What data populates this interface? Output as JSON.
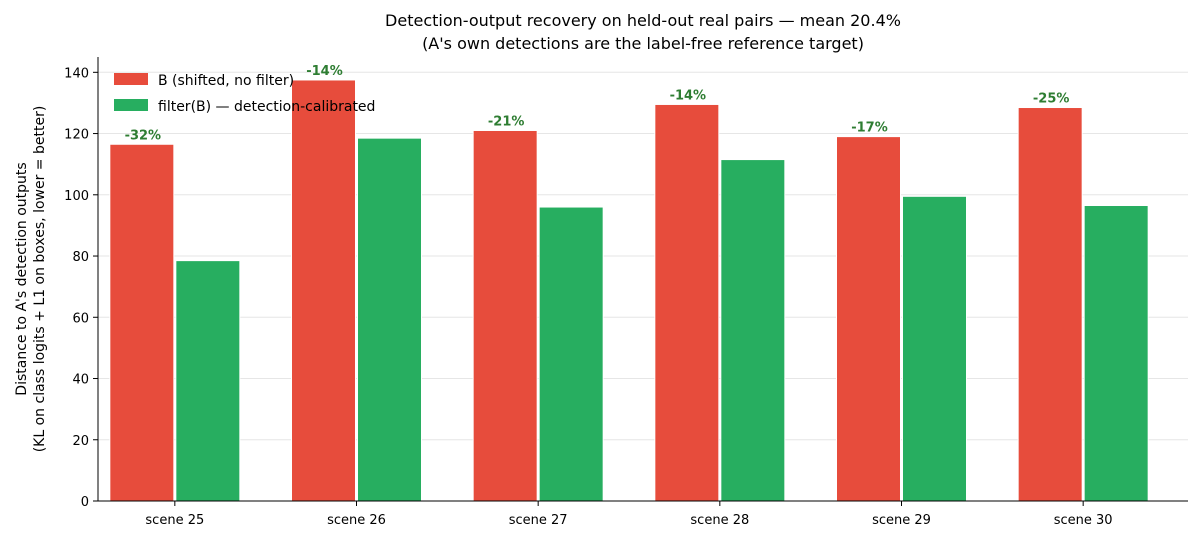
{
  "chart_data": {
    "type": "bar",
    "title": "Detection-output recovery on held-out real pairs — mean 20.4%",
    "subtitle": "(A's own detections are the label-free reference target)",
    "ylabel_line1": "Distance to A's detection outputs",
    "ylabel_line2": "(KL on class logits + L1 on boxes, lower = better)",
    "xlabel": "",
    "categories": [
      "scene 25",
      "scene 26",
      "scene 27",
      "scene 28",
      "scene 29",
      "scene 30"
    ],
    "series": [
      {
        "name": "B (shifted, no filter)",
        "color": "#e74c3c",
        "values": [
          116.5,
          137.5,
          121.0,
          129.5,
          119.0,
          128.5
        ]
      },
      {
        "name": "filter(B) — detection-calibrated",
        "color": "#27ae60",
        "values": [
          78.5,
          118.5,
          96.0,
          111.5,
          99.5,
          96.5
        ]
      }
    ],
    "annotations": [
      "-32%",
      "-14%",
      "-21%",
      "-14%",
      "-17%",
      "-25%"
    ],
    "annotation_color": "#2e7d32",
    "ylim": [
      0,
      145
    ],
    "yticks": [
      0,
      20,
      40,
      60,
      80,
      100,
      120,
      140
    ],
    "grid": true,
    "legend_position": "top-left"
  }
}
